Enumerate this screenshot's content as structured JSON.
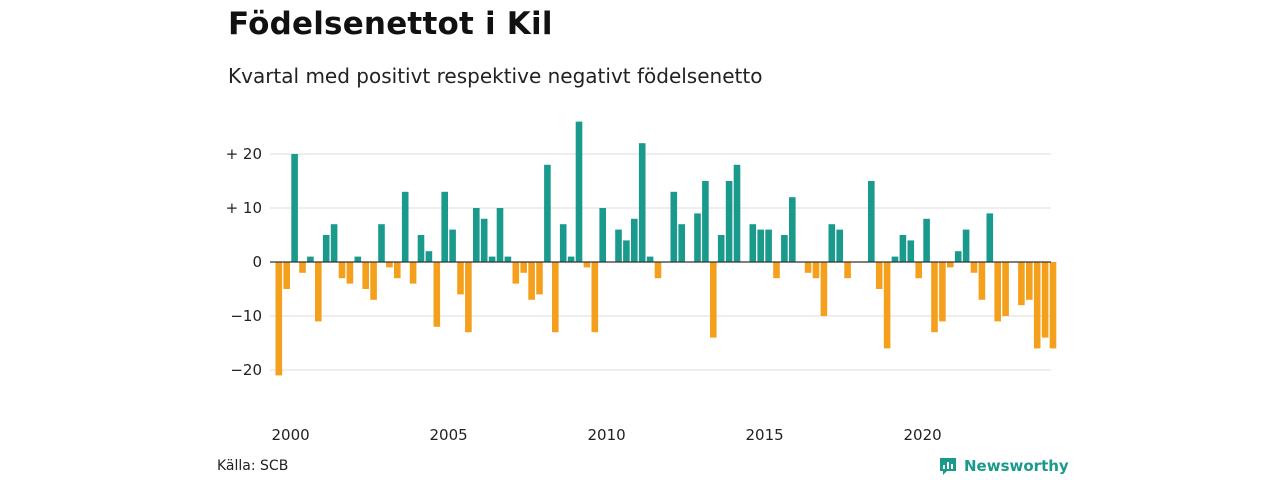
{
  "header": {
    "title": "Födelsenettot i Kil",
    "subtitle": "Kvartal med positivt respektive negativt födelsenetto"
  },
  "footer": {
    "source": "Källa: SCB",
    "brand": "Newsworthy",
    "brand_icon": "chart-logo-icon"
  },
  "colors": {
    "positive": "#1a9a8c",
    "negative": "#f5a01c",
    "grid": "#dddddd",
    "zero_line": "#333333"
  },
  "chart_data": {
    "type": "bar",
    "title": "Födelsenettot i Kil",
    "subtitle": "Kvartal med positivt respektive negativt födelsenetto",
    "x_unit": "quarter",
    "start": "2000 Q1",
    "x_tick_labels": [
      "2000",
      "2005",
      "2010",
      "2015",
      "2020"
    ],
    "y_tick_labels": [
      "−20",
      "−10",
      "0",
      "+ 10",
      "+ 20"
    ],
    "y_ticks": [
      -20,
      -10,
      0,
      10,
      20
    ],
    "ylim": [
      -22,
      27
    ],
    "grid": true,
    "values": [
      -21,
      -5,
      20,
      -2,
      1,
      -11,
      5,
      7,
      -3,
      -4,
      1,
      -5,
      -7,
      7,
      -1,
      -3,
      13,
      -4,
      5,
      2,
      -12,
      13,
      6,
      -6,
      -13,
      10,
      8,
      1,
      10,
      1,
      -4,
      -2,
      -7,
      -6,
      18,
      -13,
      7,
      1,
      26,
      -1,
      -13,
      10,
      0,
      6,
      4,
      8,
      22,
      1,
      -3,
      0,
      13,
      7,
      0,
      9,
      15,
      -14,
      5,
      15,
      18,
      0,
      7,
      6,
      6,
      -3,
      5,
      12,
      0,
      -2,
      -3,
      -10,
      7,
      6,
      -3,
      0,
      0,
      15,
      -5,
      -16,
      1,
      5,
      4,
      -3,
      8,
      -13,
      -11,
      -1,
      2,
      6,
      -2,
      -7,
      9,
      -11,
      -10,
      0,
      -8,
      -7,
      -16,
      -14,
      -16
    ]
  }
}
